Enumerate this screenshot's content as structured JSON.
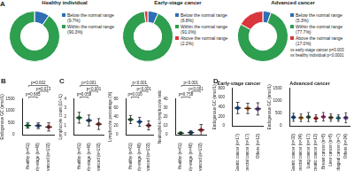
{
  "chart_data": [
    {
      "panel": "A",
      "type": "doughnut",
      "title": "Healthy individual",
      "categories": [
        "Below the normal range (9.7%)",
        "Within the normal range (90.3%)"
      ],
      "values": [
        9.7,
        90.3
      ],
      "colors": [
        "#2f6db5",
        "#2e9e4f"
      ]
    },
    {
      "type": "doughnut",
      "title": "Early-stage cancer",
      "categories": [
        "Below the normal range (6.8%)",
        "Within the normal range (91.0%)",
        "Above the normal range (2.2%)"
      ],
      "values": [
        6.8,
        91.0,
        2.2
      ],
      "colors": [
        "#2f6db5",
        "#2e9e4f",
        "#d9363e"
      ]
    },
    {
      "type": "doughnut",
      "title": "Advanced cancer",
      "categories": [
        "Below the normal range (5.3%)",
        "Within the normal range (77.7%)",
        "Above the normal range (17.0%)"
      ],
      "values": [
        5.3,
        77.7,
        17.0
      ],
      "colors": [
        "#2f6db5",
        "#2e9e4f",
        "#d9363e"
      ],
      "annotations": [
        "vs early-stage cancer p=0.003",
        "vs healthy individual p<0.0001"
      ]
    },
    {
      "panel": "B",
      "type": "dot",
      "ylabel": "Endogenous GC (nmol/L)",
      "categories": [
        "Healthy (n=61)",
        "Early-stage (n=46)",
        "Advanced (n=132)"
      ],
      "values": [
        390,
        380,
        330
      ],
      "error": [
        110,
        120,
        170
      ],
      "colors": [
        "#2e9e4f",
        "#2f6db5",
        "#d9363e"
      ],
      "ylim": [
        0,
        1500
      ],
      "yticks": [
        0,
        500,
        1000,
        1500
      ],
      "annotations": [
        {
          "text": "p=0.685",
          "between": [
            "Healthy (n=61)",
            "Early-stage (n=46)"
          ]
        },
        {
          "text": "p=0.013",
          "between": [
            "Early-stage (n=46)",
            "Advanced (n=132)"
          ]
        },
        {
          "text": "p=0.002",
          "between": [
            "Healthy (n=61)",
            "Advanced (n=132)"
          ]
        }
      ]
    },
    {
      "panel": "C",
      "type": "dot",
      "ylabel": "Lymphocyte count (10⁹/L)",
      "categories": [
        "Healthy (n=61)",
        "Early-stage (n=46)",
        "Advanced (n=132)"
      ],
      "values": [
        1.9,
        1.6,
        1.2
      ],
      "error": [
        0.6,
        0.6,
        0.6
      ],
      "colors": [
        "#2e9e4f",
        "#2f6db5",
        "#d9363e"
      ],
      "ylim": [
        0,
        4
      ],
      "yticks": [
        0,
        1,
        2,
        3,
        4
      ],
      "annotations": [
        {
          "text": "p=0.058",
          "between": [
            "Healthy (n=61)",
            "Early-stage (n=46)"
          ]
        },
        {
          "text": "p<0.001",
          "between": [
            "Early-stage (n=46)",
            "Advanced (n=132)"
          ]
        },
        {
          "text": "p<0.001",
          "between": [
            "Healthy (n=61)",
            "Advanced (n=132)"
          ]
        }
      ]
    },
    {
      "type": "dot",
      "ylabel": "Lymphocyte percentage (%)",
      "categories": [
        "Healthy (n=61)",
        "Early-stage (n=46)",
        "Advanced (n=132)"
      ],
      "values": [
        34,
        29,
        21
      ],
      "error": [
        9,
        10,
        10
      ],
      "colors": [
        "#2e9e4f",
        "#2f6db5",
        "#d9363e"
      ],
      "ylim": [
        0,
        80
      ],
      "yticks": [
        0,
        20,
        40,
        60,
        80
      ],
      "annotations": [
        {
          "text": "p=0.016",
          "between": [
            "Healthy (n=61)",
            "Early-stage (n=46)"
          ]
        },
        {
          "text": "p<0.001",
          "between": [
            "Early-stage (n=46)",
            "Advanced (n=132)"
          ]
        },
        {
          "text": "p<0.001",
          "between": [
            "Healthy (n=61)",
            "Advanced (n=132)"
          ]
        }
      ]
    },
    {
      "type": "dot",
      "ylabel": "Neutrophil-to-lymphocyte ratio",
      "categories": [
        "Healthy (n=61)",
        "Early-stage (n=46)",
        "Advanced (n=132)"
      ],
      "values": [
        1.9,
        2.6,
        5.5
      ],
      "error": [
        0.8,
        1.6,
        6
      ],
      "colors": [
        "#2e9e4f",
        "#2f6db5",
        "#d9363e"
      ],
      "ylim": [
        0,
        40
      ],
      "yticks": [
        0,
        10,
        20,
        30,
        40
      ],
      "annotations": [
        {
          "text": "p=0.758",
          "between": [
            "Healthy (n=61)",
            "Early-stage (n=46)"
          ]
        },
        {
          "text": "p<0.001",
          "between": [
            "Early-stage (n=46)",
            "Advanced (n=132)"
          ]
        },
        {
          "text": "p<0.001",
          "between": [
            "Healthy (n=61)",
            "Advanced (n=132)"
          ]
        }
      ]
    },
    {
      "panel": "D",
      "type": "dot",
      "title": "Early-stage cancer",
      "ylabel": "Endogenous GC (nmol/L)",
      "categories": [
        "Gastric cancer (n=17)",
        "Colorectal cancer (n=17)",
        "Others (n=12)"
      ],
      "values": [
        380,
        370,
        360
      ],
      "error": [
        120,
        110,
        130
      ],
      "colors": [
        "#2f6db5",
        "#e08a2e",
        "#7b4fb0"
      ],
      "ylim": [
        0,
        800
      ],
      "yticks": [
        0,
        200,
        400,
        600,
        800
      ]
    },
    {
      "type": "dot",
      "title": "Advanced cancer",
      "ylabel": "Endogenous GC (nmol/L)",
      "categories": [
        "Gastric cancer (n=32)",
        "Colorectal cancer (n=24)",
        "Lung cancer (n=17)",
        "Pancreatic cancer (n=12)",
        "Breast cancer (n=8)",
        "Liver cancer (n=8)",
        "Esophageal cancer (n=7)",
        "Others (n=24)"
      ],
      "values": [
        340,
        320,
        350,
        300,
        360,
        330,
        310,
        320
      ],
      "error": [
        160,
        150,
        180,
        140,
        170,
        150,
        130,
        200
      ],
      "colors": [
        "#2f6db5",
        "#e08a2e",
        "#2e9e4f",
        "#d9363e",
        "#e05fa8",
        "#8c6d3f",
        "#17a2b8",
        "#7b4fb0"
      ],
      "ylim": [
        0,
        1500
      ],
      "yticks": [
        0,
        500,
        1000,
        1500
      ]
    }
  ]
}
